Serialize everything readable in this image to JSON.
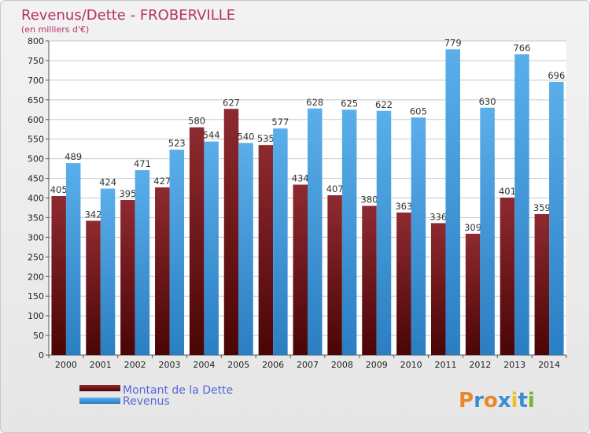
{
  "chart_data": {
    "type": "bar",
    "title": "Revenus/Dette - FROBERVILLE",
    "subtitle": "(en milliers d'€)",
    "categories": [
      "2000",
      "2001",
      "2002",
      "2003",
      "2004",
      "2005",
      "2006",
      "2007",
      "2008",
      "2009",
      "2010",
      "2011",
      "2012",
      "2013",
      "2014"
    ],
    "series": [
      {
        "name": "Montant de la Dette",
        "color": "#7a1a1e",
        "values": [
          405,
          342,
          395,
          427,
          580,
          627,
          535,
          434,
          407,
          380,
          363,
          336,
          309,
          401,
          359
        ]
      },
      {
        "name": "Revenus",
        "color": "#4a9fe0",
        "values": [
          489,
          424,
          471,
          523,
          544,
          540,
          577,
          628,
          625,
          622,
          605,
          779,
          630,
          766,
          696
        ]
      }
    ],
    "ylim": [
      0,
      800
    ],
    "yticks": [
      0,
      50,
      100,
      150,
      200,
      250,
      300,
      350,
      400,
      450,
      500,
      550,
      600,
      650,
      700,
      750,
      800
    ],
    "grid": true,
    "legend_position": "bottom-left"
  },
  "logo": {
    "text": "Proxiti",
    "letters": [
      "P",
      "r",
      "o",
      "x",
      "i",
      "t",
      "i"
    ],
    "colors": [
      "#e8882a",
      "#3a8fd0",
      "#e8882a",
      "#3a8fd0",
      "#e8c22a",
      "#3a8fd0",
      "#7ab52a"
    ]
  }
}
